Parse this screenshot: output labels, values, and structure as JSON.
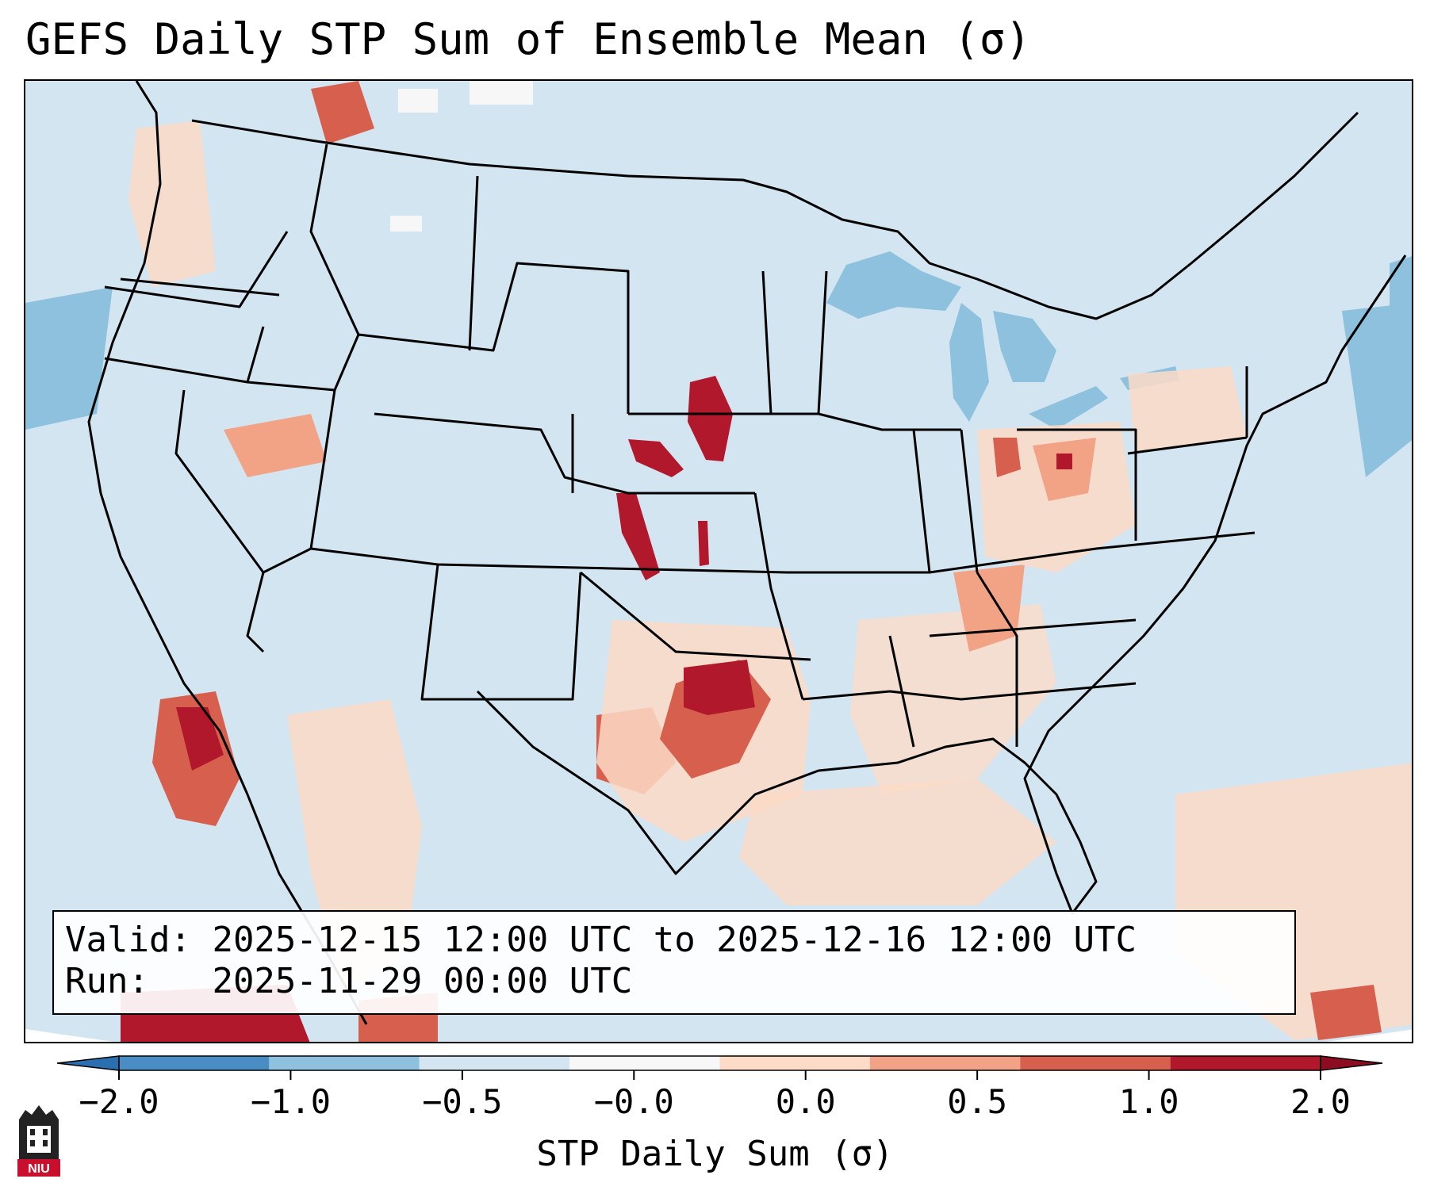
{
  "title": "GEFS Daily STP Sum of Ensemble Mean (σ)",
  "info": {
    "valid_label": "Valid:",
    "valid_value": "2025-12-15 12:00 UTC to 2025-12-16 12:00 UTC",
    "run_label": "Run:",
    "run_value": "2025-11-29 00:00 UTC"
  },
  "colorbar": {
    "label": "STP Daily Sum (σ)",
    "ticks": [
      "−2.0",
      "−1.0",
      "−0.5",
      "−0.0",
      "0.0",
      "0.5",
      "1.0",
      "2.0"
    ],
    "colors": [
      "#4a8cc4",
      "#8ec1dd",
      "#d2e5f0",
      "#f7f7f7",
      "#fddbc7",
      "#f2a385",
      "#d6604d",
      "#b2182b"
    ],
    "under_color": "#2a6fb0",
    "over_color": "#8e0c22"
  },
  "map": {
    "ocean_color": "#d2e5f0",
    "lakes_color": "#8ec1dd",
    "boundary_color": "#000000"
  },
  "logo": {
    "text": "NIU",
    "color": "#c8102e"
  }
}
